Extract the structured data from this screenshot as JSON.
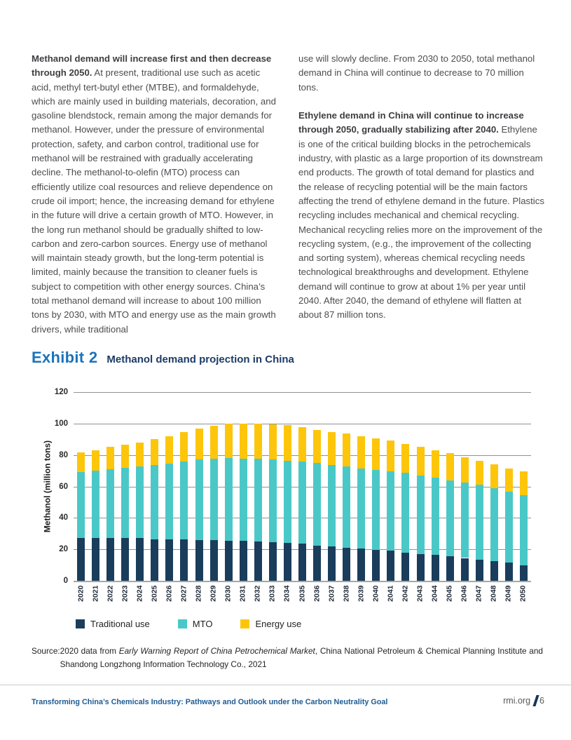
{
  "page": {
    "columns": {
      "left": {
        "lead_bold": "Methanol demand will increase first and then decrease through 2050.",
        "body": " At present, traditional use such as acetic acid, methyl tert-butyl ether (MTBE), and formaldehyde, which are mainly used in building materials, decoration, and gasoline blendstock, remain among the major demands for methanol. However, under the pressure of environmental protection, safety, and carbon control, traditional use for methanol will be restrained with gradually accelerating decline. The methanol-to-olefin (MTO) process can efficiently utilize coal resources and relieve dependence on crude oil import; hence, the increasing demand for ethylene in the future will drive a certain growth of MTO. However, in the long run methanol should be gradually shifted to low-carbon and zero-carbon sources. Energy use of methanol will maintain steady growth, but the long-term potential is limited, mainly because the transition to cleaner fuels is subject to competition with other energy sources. China’s total methanol demand will increase to about 100 million tons by 2030, with MTO and energy use as the main growth drivers, while traditional"
      },
      "right": {
        "para1": "use will slowly decline. From 2030 to 2050, total methanol demand in China will continue to decrease to 70 million tons.",
        "para2_bold": "Ethylene demand in China will continue to increase through 2050, gradually stabilizing after 2040.",
        "para2_body": " Ethylene is one of the critical building blocks in the petrochemicals industry, with plastic as a large proportion of its downstream end products. The growth of total demand for plastics and the release of recycling potential will be the main factors affecting the trend of ethylene demand in the future. Plastics recycling includes mechanical and chemical recycling. Mechanical recycling relies more on the improvement of the recycling system, (e.g., the improvement of the collecting and sorting system), whereas chemical recycling needs technological breakthroughs and development. Ethylene demand will continue to grow at about 1% per year until 2040. After 2040, the demand of ethylene will flatten at about 87 million tons."
      }
    },
    "exhibit": {
      "label": "Exhibit 2",
      "title": "Methanol demand projection in China"
    },
    "source": {
      "label": "Source:",
      "prefix": "2020 data from ",
      "italic": "Early Warning Report of China Petrochemical Market",
      "suffix": ", China National Petroleum & Chemical Planning Institute and Shandong Longzhong Information Technology Co., 2021"
    },
    "footer": {
      "title": "Transforming China’s Chemicals Industry: Pathways and Outlook under the Carbon Neutrality Goal",
      "site": "rmi.org",
      "page_number": "6"
    },
    "colors": {
      "exhibit_blue": "#1c73b9",
      "exhibit_navy": "#1d3c66",
      "footer_blue": "#1d5b94",
      "traditional_navy": "#1b3d5c",
      "mto_teal": "#4ac8c8",
      "energy_yellow": "#fdc60b"
    }
  },
  "chart_data": {
    "type": "bar",
    "stacked": true,
    "title": "Methanol demand projection in China",
    "xlabel": "",
    "ylabel": "Methanol (million tons)",
    "ylim": [
      0,
      120
    ],
    "ytick_interval": 20,
    "grid": true,
    "legend_position": "bottom",
    "categories": [
      "2020",
      "2021",
      "2022",
      "2023",
      "2024",
      "2025",
      "2026",
      "2027",
      "2028",
      "2029",
      "2030",
      "2031",
      "2032",
      "2033",
      "2034",
      "2035",
      "2036",
      "2037",
      "2038",
      "2039",
      "2040",
      "2041",
      "2042",
      "2043",
      "2044",
      "2045",
      "2046",
      "2047",
      "2048",
      "2049",
      "2050"
    ],
    "series": [
      {
        "name": "Traditional use",
        "color": "#1b3d5c",
        "values": [
          27,
          27,
          27,
          27,
          27,
          26.5,
          26.5,
          26.5,
          26,
          26,
          25.5,
          25.5,
          25,
          24.5,
          24,
          23.5,
          22.5,
          22,
          21,
          20.5,
          19.5,
          19,
          18,
          17,
          16.5,
          15.5,
          14.5,
          13.5,
          12.5,
          11.5,
          10
        ]
      },
      {
        "name": "MTO",
        "color": "#4ac8c8",
        "values": [
          42,
          43,
          44,
          45,
          45.5,
          47,
          48,
          49.5,
          51,
          51.5,
          52.5,
          52,
          52.5,
          52.5,
          52.5,
          52.5,
          52.5,
          51.5,
          51.5,
          51,
          51,
          50.5,
          50.5,
          50,
          49,
          48.5,
          48,
          47.5,
          46.5,
          45,
          44.5
        ]
      },
      {
        "name": "Energy use",
        "color": "#fdc60b",
        "values": [
          12.5,
          13,
          14,
          14.5,
          15.5,
          16.5,
          17.5,
          18.5,
          20,
          21,
          22,
          22.5,
          22.5,
          22.5,
          22.5,
          21.5,
          21,
          21,
          21,
          20.5,
          20,
          19.5,
          18.5,
          18,
          17.5,
          17,
          16,
          15.5,
          15,
          15,
          15
        ]
      }
    ]
  }
}
